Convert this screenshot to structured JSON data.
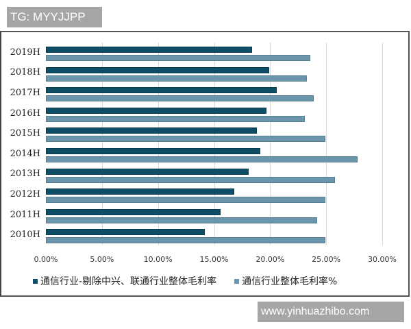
{
  "watermark_top": "TG: MYYJJPP",
  "watermark_bottom": "www.yinhuazhibo.com",
  "colors": {
    "series1": "#0e4d66",
    "series2": "#6a95aa",
    "grid": "#d9d9d9"
  },
  "legend": {
    "series1": "通信行业-剔除中兴、联通行业整体毛利率",
    "series2": "通信行业整体毛利率%"
  },
  "x_ticks": [
    "0.00%",
    "5.00%",
    "10.00%",
    "15.00%",
    "20.00%",
    "25.00%",
    "30.00%"
  ],
  "chart_data": {
    "type": "bar",
    "orientation": "horizontal",
    "title": "",
    "xlabel": "",
    "ylabel": "",
    "categories": [
      "2019H",
      "2018H",
      "2017H",
      "2016H",
      "2015H",
      "2014H",
      "2013H",
      "2012H",
      "2011H",
      "2010H"
    ],
    "series": [
      {
        "name": "通信行业-剔除中兴、联通行业整体毛利率",
        "values": [
          18.4,
          19.9,
          20.6,
          19.7,
          18.8,
          19.1,
          18.1,
          16.8,
          15.6,
          14.2
        ]
      },
      {
        "name": "通信行业整体毛利率%",
        "values": [
          23.6,
          23.3,
          23.9,
          23.1,
          24.9,
          27.8,
          25.8,
          24.9,
          24.2,
          24.9
        ]
      }
    ],
    "xlim": [
      0,
      30
    ],
    "x_tick_labels": [
      "0.00%",
      "5.00%",
      "10.00%",
      "15.00%",
      "20.00%",
      "25.00%",
      "30.00%"
    ],
    "grid": "vertical",
    "legend_position": "bottom"
  }
}
